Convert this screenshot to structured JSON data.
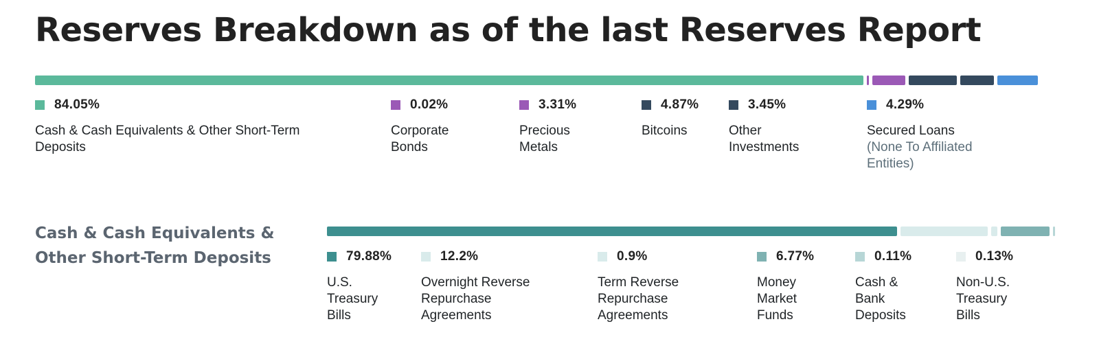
{
  "title": "Reserves Breakdown as of the last Reserves Report",
  "breakdown_heading": "Cash & Cash Equivalents & Other Short-Term Deposits",
  "chart_data": [
    {
      "type": "bar",
      "orientation": "horizontal-stacked",
      "title": "Reserves Breakdown as of the last Reserves Report",
      "unit": "%",
      "series": [
        {
          "label": "84.05%",
          "value": 84.05,
          "name": "Cash & Cash Equivalents & Other Short-Term Deposits",
          "color": "#5bb99b"
        },
        {
          "label": "0.02%",
          "value": 0.02,
          "name": "Corporate Bonds",
          "color": "#9b59b6"
        },
        {
          "label": "3.31%",
          "value": 3.31,
          "name": "Precious Metals",
          "color": "#9b59b6"
        },
        {
          "label": "4.87%",
          "value": 4.87,
          "name": "Bitcoins",
          "color": "#34495e"
        },
        {
          "label": "3.45%",
          "value": 3.45,
          "name": "Other Investments",
          "color": "#34495e"
        },
        {
          "label": "4.29%",
          "value": 4.29,
          "name": "Secured Loans",
          "note": "(None To Affiliated Entities)",
          "color": "#4a90d9"
        }
      ]
    },
    {
      "type": "bar",
      "orientation": "horizontal-stacked",
      "title": "Cash & Cash Equivalents & Other Short-Term Deposits",
      "unit": "%",
      "series": [
        {
          "label": "79.88%",
          "value": 79.88,
          "name": "U.S. Treasury Bills",
          "color": "#3d8f8f"
        },
        {
          "label": "12.2%",
          "value": 12.2,
          "name": "Overnight Reverse Repurchase Agreements",
          "color": "#d9ebeb"
        },
        {
          "label": "0.9%",
          "value": 0.9,
          "name": "Term Reverse Repurchase Agreements",
          "color": "#d9ebeb"
        },
        {
          "label": "6.77%",
          "value": 6.77,
          "name": "Money Market Funds",
          "color": "#7fb2b2"
        },
        {
          "label": "0.11%",
          "value": 0.11,
          "name": "Cash & Bank Deposits",
          "color": "#b7d6d6"
        },
        {
          "label": "0.13%",
          "value": 0.13,
          "name": "Non-U.S. Treasury Bills",
          "color": "#e8f0f0"
        }
      ]
    }
  ]
}
